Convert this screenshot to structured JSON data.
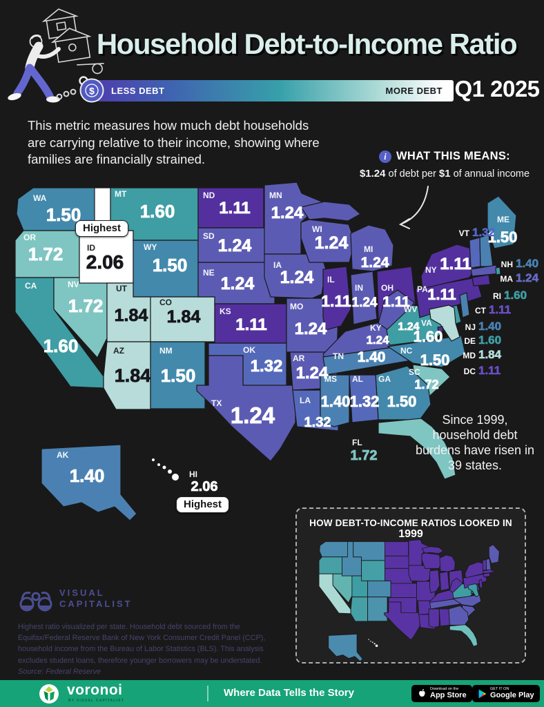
{
  "header": {
    "title": "Household Debt-to-Income Ratio",
    "period": "Q1 2025",
    "legend_less": "LESS DEBT",
    "legend_more": "MORE DEBT",
    "dollar_char": "$"
  },
  "intro": {
    "text": "This metric measures how much debt households are carrying relative to their income, showing where families are financially strained."
  },
  "callout": {
    "info_char": "i",
    "heading": "WHAT THIS MEANS:",
    "value1": "$1.24",
    "mid": " of debt per ",
    "value2": "$1",
    "tail": " of annual income"
  },
  "note_1999": "Since 1999, household debt burdens have risen in 39 states.",
  "map_labels": {
    "highest": "Highest"
  },
  "inset": {
    "title_prefix": "HOW DEBT-TO-INCOME RATIOS LOOKED IN ",
    "title_year": "1999"
  },
  "footer": {
    "logo_line1": "VISUAL",
    "logo_line2": "CAPITALIST",
    "note": "Highest ratio visualized per state. Household debt sourced from the Equifax/Federal Reserve Bank of New York Consumer Credit Panel (CCP), household income from the Bureau of Labor Statistics (BLS).  This analysis excludes student loans, therefore younger borrowers may be understated. ",
    "source_label": "Source: Federal Reserve"
  },
  "bottombar": {
    "brand": "voronoi",
    "brand_sub": "BY VISUAL CAPITALIST",
    "tagline": "Where Data Tells the Story",
    "appstore_top": "Download on the",
    "appstore_bottom": "App Store",
    "gplay_top": "GET IT ON",
    "gplay_bottom": "Google Play"
  },
  "colors": {
    "background": "#191919",
    "footer_bar": "#16a377",
    "info": "#5560c8",
    "title_text": "#d9eeea"
  },
  "chart_data": {
    "type": "heatmap",
    "subtype": "us-choropleth-map",
    "title": "Household Debt-to-Income Ratio",
    "period": "Q1 2025",
    "unit": "ratio of household debt to annual income (dollars of debt per $1 of income)",
    "legend": {
      "min_label": "LESS DEBT",
      "max_label": "MORE DEBT",
      "gradient": [
        "#4f3cae",
        "#37a0aa",
        "#ffffff"
      ]
    },
    "highest_states": [
      "ID",
      "HI"
    ],
    "highest_value": "2.06",
    "callout_example": "$1.24 of debt per $1 of annual income",
    "color_scale": [
      {
        "value": "1.11",
        "color": "#53309e"
      },
      {
        "value": "1.24",
        "color": "#5c5bb3"
      },
      {
        "value": "1.32",
        "color": "#5569ba"
      },
      {
        "value": "1.40",
        "color": "#4a81b2"
      },
      {
        "value": "1.50",
        "color": "#4289ac"
      },
      {
        "value": "1.60",
        "color": "#3f9da4"
      },
      {
        "value": "1.72",
        "color": "#7fc5c2"
      },
      {
        "value": "1.84",
        "color": "#b7dcda"
      },
      {
        "value": "2.06",
        "color": "#ffffff"
      }
    ],
    "states": [
      {
        "abbr": "WA",
        "value": "1.50"
      },
      {
        "abbr": "OR",
        "value": "1.72"
      },
      {
        "abbr": "CA",
        "value": "1.60"
      },
      {
        "abbr": "NV",
        "value": "1.72"
      },
      {
        "abbr": "ID",
        "value": "2.06"
      },
      {
        "abbr": "MT",
        "value": "1.60"
      },
      {
        "abbr": "WY",
        "value": "1.50"
      },
      {
        "abbr": "UT",
        "value": "1.84"
      },
      {
        "abbr": "CO",
        "value": "1.84"
      },
      {
        "abbr": "AZ",
        "value": "1.84"
      },
      {
        "abbr": "NM",
        "value": "1.50"
      },
      {
        "abbr": "ND",
        "value": "1.11"
      },
      {
        "abbr": "SD",
        "value": "1.24"
      },
      {
        "abbr": "NE",
        "value": "1.24"
      },
      {
        "abbr": "KS",
        "value": "1.11"
      },
      {
        "abbr": "OK",
        "value": "1.32"
      },
      {
        "abbr": "TX",
        "value": "1.24"
      },
      {
        "abbr": "MN",
        "value": "1.24"
      },
      {
        "abbr": "IA",
        "value": "1.24"
      },
      {
        "abbr": "MO",
        "value": "1.24"
      },
      {
        "abbr": "AR",
        "value": "1.24"
      },
      {
        "abbr": "LA",
        "value": "1.32"
      },
      {
        "abbr": "WI",
        "value": "1.24"
      },
      {
        "abbr": "IL",
        "value": "1.11"
      },
      {
        "abbr": "IN",
        "value": "1.24"
      },
      {
        "abbr": "OH",
        "value": "1.11"
      },
      {
        "abbr": "MI",
        "value": "1.24"
      },
      {
        "abbr": "KY",
        "value": "1.24"
      },
      {
        "abbr": "TN",
        "value": "1.40"
      },
      {
        "abbr": "WV",
        "value": "1.24"
      },
      {
        "abbr": "VA",
        "value": "1.60"
      },
      {
        "abbr": "NC",
        "value": "1.50"
      },
      {
        "abbr": "SC",
        "value": "1.72"
      },
      {
        "abbr": "GA",
        "value": "1.50"
      },
      {
        "abbr": "AL",
        "value": "1.32"
      },
      {
        "abbr": "MS",
        "value": "1.40"
      },
      {
        "abbr": "FL",
        "value": "1.72"
      },
      {
        "abbr": "PA",
        "value": "1.11"
      },
      {
        "abbr": "NY",
        "value": "1.11"
      },
      {
        "abbr": "ME",
        "value": "1.50"
      },
      {
        "abbr": "VT",
        "value": "1.32"
      },
      {
        "abbr": "NH",
        "value": "1.40"
      },
      {
        "abbr": "MA",
        "value": "1.24"
      },
      {
        "abbr": "RI",
        "value": "1.60"
      },
      {
        "abbr": "CT",
        "value": "1.11"
      },
      {
        "abbr": "NJ",
        "value": "1.40"
      },
      {
        "abbr": "DE",
        "value": "1.60"
      },
      {
        "abbr": "MD",
        "value": "1.84"
      },
      {
        "abbr": "DC",
        "value": "1.11"
      },
      {
        "abbr": "AK",
        "value": "1.40"
      },
      {
        "abbr": "HI",
        "value": "2.06"
      }
    ],
    "inset_1999": {
      "title": "HOW DEBT-TO-INCOME RATIOS LOOKED IN 1999",
      "note": "values not labeled; colors only",
      "default_color": "#5933a3",
      "colors_by_state": {
        "WA": "#4b8bae",
        "OR": "#46a0a6",
        "CA": "#abd9d3",
        "NV": "#62b4b1",
        "ID": "#4b8bae",
        "MT": "#4b8bae",
        "WY": "#44a0a6",
        "UT": "#3f9da4",
        "CO": "#4b8bae",
        "AZ": "#46a0a6",
        "NM": "#4d93ac",
        "AK": "#4b8bae",
        "HI": "#ffffff",
        "FL": "#6fc0bd",
        "VA": "#3f9da4",
        "MD": "#3f9da4",
        "NC": "#5c5bb3",
        "SC": "#5c5bb3",
        "GA": "#5c5bb3",
        "TN": "#5c5bb3",
        "ME": "#5c5bb3",
        "NH": "#5c5bb3",
        "DC": "#3f9da4"
      }
    }
  }
}
